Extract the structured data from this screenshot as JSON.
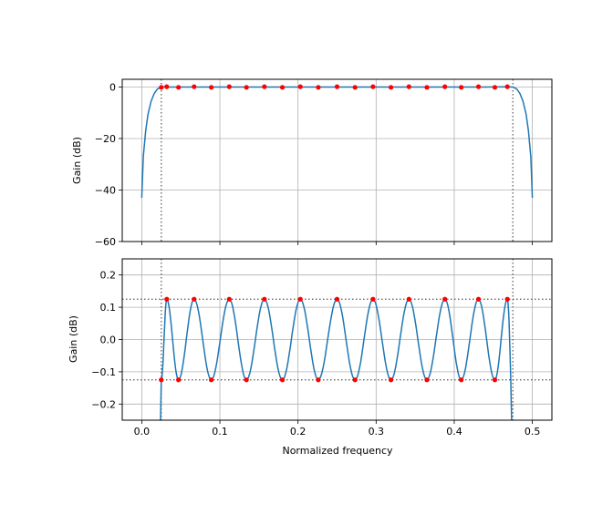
{
  "chart_data": [
    {
      "type": "line",
      "panel": "top",
      "title": "",
      "xlabel": "",
      "ylabel": "Gain (dB)",
      "xlim": [
        -0.025,
        0.525
      ],
      "ylim": [
        -60,
        3
      ],
      "xticks": [
        0.0,
        0.1,
        0.2,
        0.3,
        0.4,
        0.5
      ],
      "xtick_labels": [],
      "yticks": [
        -60,
        -40,
        -20,
        0
      ],
      "ytick_labels": [
        "−60",
        "−40",
        "−20",
        "0"
      ],
      "grid": true,
      "series": [
        {
          "color": "#1f77b4",
          "x": [
            0.0,
            0.002,
            0.005,
            0.008,
            0.012,
            0.016,
            0.02,
            0.025,
            0.03,
            0.035,
            0.045,
            0.06,
            0.1,
            0.2,
            0.3,
            0.4,
            0.44,
            0.465,
            0.475,
            0.48,
            0.484,
            0.488,
            0.492,
            0.495,
            0.498,
            0.5
          ],
          "values": [
            -43.0,
            -27.0,
            -17.0,
            -10.5,
            -5.5,
            -2.5,
            -0.8,
            0.0,
            0.1,
            0.0,
            0.0,
            0.0,
            0.0,
            0.0,
            0.0,
            0.0,
            0.0,
            0.1,
            0.0,
            -0.8,
            -2.5,
            -5.5,
            -10.5,
            -17.0,
            -27.0,
            -43.0
          ]
        },
        {
          "color": "#ff0000",
          "marker": "dot",
          "x": [
            0.025,
            0.032,
            0.047,
            0.067,
            0.089,
            0.112,
            0.134,
            0.157,
            0.18,
            0.203,
            0.226,
            0.25,
            0.273,
            0.296,
            0.319,
            0.342,
            0.365,
            0.388,
            0.409,
            0.431,
            0.452,
            0.468
          ],
          "values": [
            -0.125,
            0.125,
            -0.125,
            0.125,
            -0.125,
            0.125,
            -0.125,
            0.125,
            -0.125,
            0.125,
            -0.125,
            0.125,
            -0.125,
            0.125,
            -0.125,
            0.125,
            -0.125,
            0.125,
            -0.125,
            0.125,
            -0.125,
            0.125
          ]
        }
      ],
      "vlines": [
        0.025,
        0.475
      ]
    },
    {
      "type": "line",
      "panel": "bottom",
      "title": "",
      "xlabel": "Normalized frequency",
      "ylabel": "Gain (dB)",
      "xlim": [
        -0.025,
        0.525
      ],
      "ylim": [
        -0.25,
        0.25
      ],
      "xticks": [
        0.0,
        0.1,
        0.2,
        0.3,
        0.4,
        0.5
      ],
      "xtick_labels": [
        "0.0",
        "0.1",
        "0.2",
        "0.3",
        "0.4",
        "0.5"
      ],
      "yticks": [
        -0.2,
        -0.1,
        0.0,
        0.1,
        0.2
      ],
      "ytick_labels": [
        "−0.2",
        "−0.1",
        "0.0",
        "0.1",
        "0.2"
      ],
      "grid": true,
      "series": [
        {
          "color": "#1f77b4",
          "extrema_x": [
            0.025,
            0.032,
            0.047,
            0.067,
            0.089,
            0.112,
            0.134,
            0.157,
            0.18,
            0.203,
            0.226,
            0.25,
            0.273,
            0.296,
            0.319,
            0.342,
            0.365,
            0.388,
            0.409,
            0.431,
            0.452,
            0.468
          ],
          "extrema_y": [
            -0.125,
            0.125,
            -0.125,
            0.125,
            -0.125,
            0.125,
            -0.125,
            0.125,
            -0.125,
            0.125,
            -0.125,
            0.125,
            -0.125,
            0.125,
            -0.125,
            0.125,
            -0.125,
            0.125,
            -0.125,
            0.125,
            -0.125,
            0.125
          ],
          "tails": [
            {
              "x": [
                0.024,
                0.025
              ],
              "values": [
                -0.25,
                -0.125
              ]
            },
            {
              "x": [
                0.468,
                0.4735
              ],
              "values": [
                0.125,
                -0.25
              ]
            }
          ]
        },
        {
          "color": "#ff0000",
          "marker": "dot",
          "x": [
            0.025,
            0.032,
            0.047,
            0.067,
            0.089,
            0.112,
            0.134,
            0.157,
            0.18,
            0.203,
            0.226,
            0.25,
            0.273,
            0.296,
            0.319,
            0.342,
            0.365,
            0.388,
            0.409,
            0.431,
            0.452,
            0.468
          ],
          "values": [
            -0.125,
            0.125,
            -0.125,
            0.125,
            -0.125,
            0.125,
            -0.125,
            0.125,
            -0.125,
            0.125,
            -0.125,
            0.125,
            -0.125,
            0.125,
            -0.125,
            0.125,
            -0.125,
            0.125,
            -0.125,
            0.125,
            -0.125,
            0.125
          ]
        }
      ],
      "vlines": [
        0.025,
        0.475
      ],
      "hlines": [
        0.125,
        -0.125
      ]
    }
  ]
}
